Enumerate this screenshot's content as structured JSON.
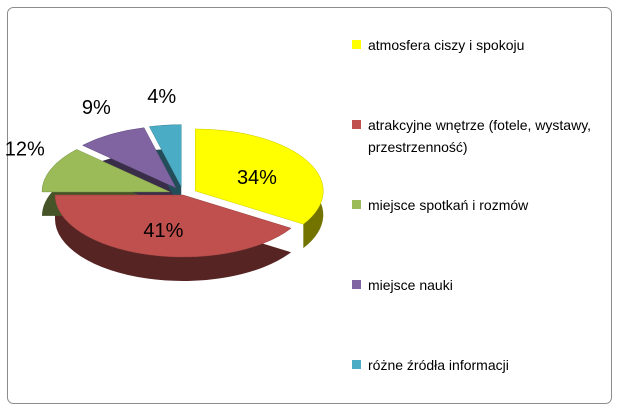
{
  "chart_data": {
    "type": "pie",
    "categories": [
      "atmosfera ciszy i spokoju",
      "atrakcyjne wnętrze (fotele, wystawy, przestrzenność)",
      "miejsce spotkań i rozmów",
      "miejsce nauki",
      "różne źródła informacji"
    ],
    "values": [
      34,
      41,
      12,
      9,
      4
    ],
    "value_labels": [
      "34%",
      "41%",
      "12%",
      "9%",
      "4%"
    ],
    "colors": [
      "#ffff00",
      "#c0504d",
      "#9bbb59",
      "#8064a2",
      "#4bacc6"
    ],
    "legend": "right"
  }
}
